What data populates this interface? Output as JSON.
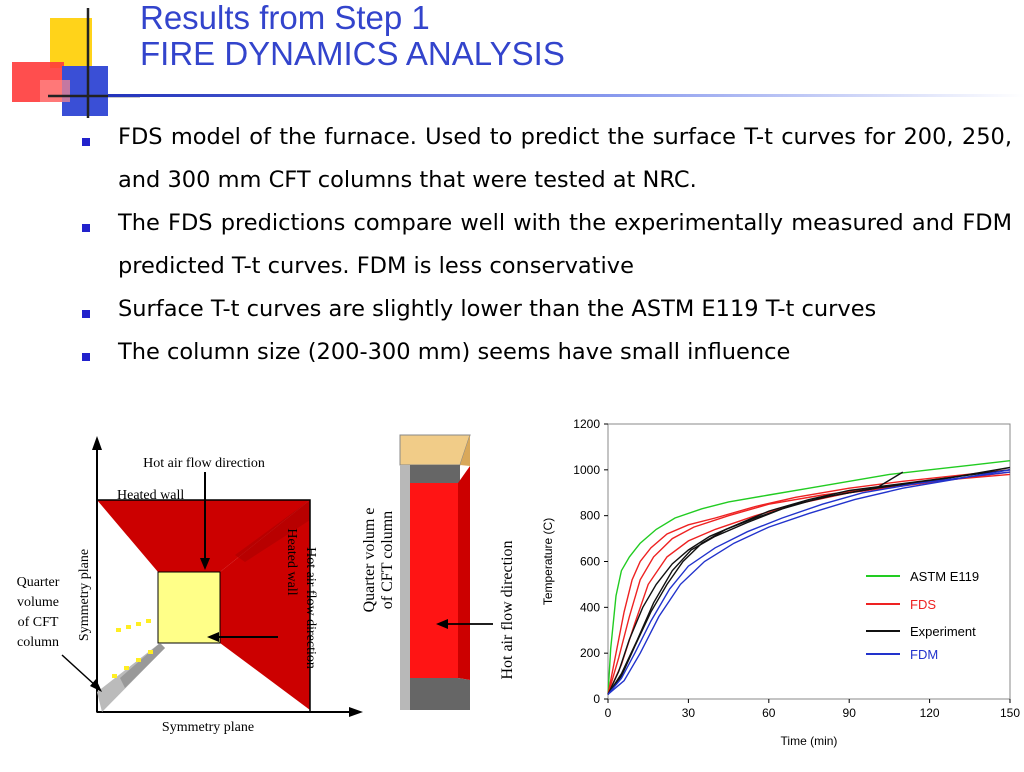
{
  "title": {
    "line1": "Results from Step 1",
    "line2": "FIRE DYNAMICS ANALYSIS"
  },
  "bullets": [
    "FDS model of the furnace. Used to predict the surface T-t curves for 200, 250, and 300 mm CFT columns that were tested at NRC.",
    "The FDS predictions compare well with the experimentally measured and FDM predicted T-t curves. FDM is less conservative",
    "Surface T-t curves are slightly lower than the ASTM E119 T-t curves",
    "The column size (200-300 mm) seems have small influence"
  ],
  "figure1": {
    "hot_air_flow": "Hot air flow direction",
    "heated_wall_top": "Heated wall",
    "hot_air_flow_right": "Hot air flow direction",
    "heated_wall_right": "Heated wall",
    "symmetry_plane_left": "Symmetry plane",
    "symmetry_plane_bottom": "Symmetry plane",
    "quarter_line1": "Quarter",
    "quarter_line2": "volume",
    "quarter_line3": "of CFT",
    "quarter_line4": "column"
  },
  "figure2": {
    "quarter_line1": "Quarter volum e",
    "quarter_line2": "of CFT column",
    "hot_air_flow": "Hot air flow direction"
  },
  "chart_data": {
    "type": "line",
    "xlabel": "Time (min)",
    "ylabel": "Temperature (C)",
    "xlim": [
      0,
      150
    ],
    "ylim": [
      0,
      1200
    ],
    "xticks": [
      0,
      30,
      60,
      90,
      120,
      150
    ],
    "yticks": [
      0,
      200,
      400,
      600,
      800,
      1000,
      1200
    ],
    "grid": false,
    "legend_position": "right",
    "series": [
      {
        "name": "ASTM E119",
        "color": "#22cc22",
        "curves": [
          [
            [
              0,
              20
            ],
            [
              1,
              220
            ],
            [
              3,
              450
            ],
            [
              5,
              560
            ],
            [
              8,
              620
            ],
            [
              12,
              680
            ],
            [
              18,
              740
            ],
            [
              25,
              790
            ],
            [
              35,
              830
            ],
            [
              45,
              860
            ],
            [
              60,
              890
            ],
            [
              75,
              920
            ],
            [
              90,
              950
            ],
            [
              105,
              980
            ],
            [
              120,
              1000
            ],
            [
              135,
              1020
            ],
            [
              150,
              1040
            ]
          ]
        ]
      },
      {
        "name": "FDS",
        "color": "#ee2222",
        "curves": [
          [
            [
              0,
              20
            ],
            [
              3,
              200
            ],
            [
              6,
              380
            ],
            [
              9,
              520
            ],
            [
              12,
              600
            ],
            [
              16,
              660
            ],
            [
              22,
              720
            ],
            [
              30,
              760
            ],
            [
              40,
              790
            ],
            [
              55,
              840
            ],
            [
              70,
              880
            ],
            [
              90,
              920
            ],
            [
              110,
              950
            ],
            [
              130,
              975
            ],
            [
              150,
              1000
            ]
          ],
          [
            [
              0,
              20
            ],
            [
              4,
              180
            ],
            [
              8,
              360
            ],
            [
              12,
              520
            ],
            [
              17,
              620
            ],
            [
              24,
              700
            ],
            [
              32,
              750
            ],
            [
              45,
              800
            ],
            [
              60,
              850
            ],
            [
              80,
              890
            ],
            [
              100,
              920
            ],
            [
              120,
              950
            ],
            [
              150,
              980
            ]
          ],
          [
            [
              0,
              20
            ],
            [
              5,
              150
            ],
            [
              10,
              330
            ],
            [
              15,
              500
            ],
            [
              22,
              620
            ],
            [
              30,
              690
            ],
            [
              40,
              740
            ],
            [
              55,
              800
            ],
            [
              70,
              850
            ],
            [
              90,
              900
            ],
            [
              110,
              930
            ],
            [
              130,
              960
            ],
            [
              150,
              990
            ]
          ]
        ]
      },
      {
        "name": "Experiment",
        "color": "#111111",
        "curves": [
          [
            [
              0,
              20
            ],
            [
              4,
              120
            ],
            [
              8,
              260
            ],
            [
              13,
              400
            ],
            [
              18,
              500
            ],
            [
              24,
              590
            ],
            [
              30,
              650
            ],
            [
              38,
              710
            ],
            [
              48,
              760
            ],
            [
              60,
              820
            ],
            [
              75,
              870
            ],
            [
              90,
              910
            ],
            [
              110,
              940
            ],
            [
              130,
              970
            ],
            [
              150,
              1000
            ]
          ],
          [
            [
              0,
              20
            ],
            [
              5,
              100
            ],
            [
              10,
              230
            ],
            [
              16,
              380
            ],
            [
              22,
              500
            ],
            [
              28,
              600
            ],
            [
              35,
              680
            ],
            [
              44,
              740
            ],
            [
              55,
              790
            ],
            [
              70,
              850
            ],
            [
              85,
              890
            ],
            [
              100,
              920
            ],
            [
              110,
              990
            ]
          ],
          [
            [
              0,
              20
            ],
            [
              5,
              110
            ],
            [
              11,
              260
            ],
            [
              17,
              420
            ],
            [
              24,
              560
            ],
            [
              31,
              650
            ],
            [
              40,
              710
            ],
            [
              52,
              770
            ],
            [
              65,
              830
            ],
            [
              80,
              880
            ],
            [
              100,
              920
            ],
            [
              125,
              960
            ],
            [
              150,
              1010
            ]
          ]
        ]
      },
      {
        "name": "FDM",
        "color": "#2233cc",
        "curves": [
          [
            [
              0,
              20
            ],
            [
              5,
              90
            ],
            [
              10,
              200
            ],
            [
              16,
              340
            ],
            [
              23,
              480
            ],
            [
              30,
              580
            ],
            [
              40,
              660
            ],
            [
              52,
              730
            ],
            [
              65,
              790
            ],
            [
              80,
              850
            ],
            [
              95,
              900
            ],
            [
              115,
              940
            ],
            [
              135,
              970
            ],
            [
              150,
              990
            ]
          ],
          [
            [
              0,
              20
            ],
            [
              6,
              80
            ],
            [
              12,
              200
            ],
            [
              19,
              360
            ],
            [
              27,
              500
            ],
            [
              36,
              600
            ],
            [
              47,
              680
            ],
            [
              60,
              750
            ],
            [
              75,
              810
            ],
            [
              92,
              870
            ],
            [
              110,
              920
            ],
            [
              130,
              960
            ],
            [
              150,
              1000
            ]
          ]
        ]
      }
    ]
  }
}
